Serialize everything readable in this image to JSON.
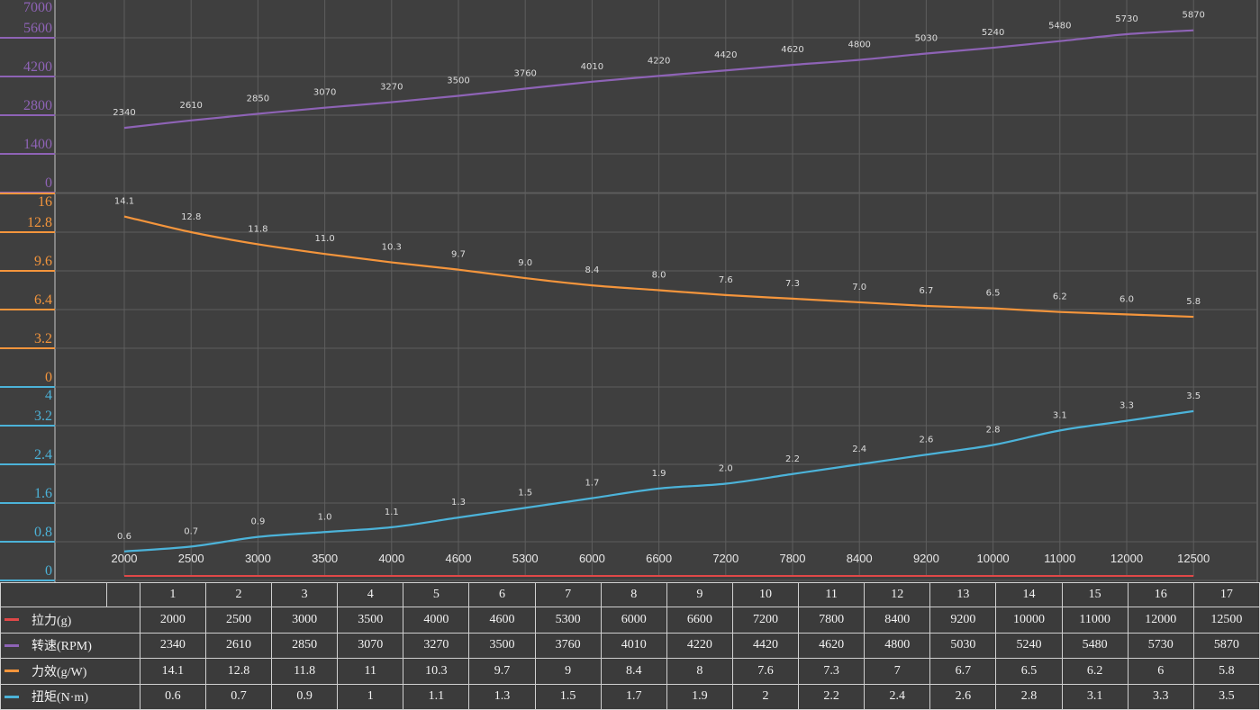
{
  "chart_data": {
    "type": "line",
    "categories": [
      "2000",
      "2500",
      "3000",
      "3500",
      "4000",
      "4600",
      "5300",
      "6000",
      "6600",
      "7200",
      "7800",
      "8400",
      "9200",
      "10000",
      "11000",
      "12000",
      "12500"
    ],
    "series": [
      {
        "name": "拉力(g)",
        "color": "#e04848",
        "values": [
          2000,
          2500,
          3000,
          3500,
          4000,
          4600,
          5300,
          6000,
          6600,
          7200,
          7800,
          8400,
          9200,
          10000,
          11000,
          12000,
          12500
        ]
      },
      {
        "name": "转速(RPM)",
        "color": "#8e63b6",
        "axis_ticks": [
          "0",
          "1400",
          "2800",
          "4200",
          "5600",
          "7000"
        ],
        "ylim": [
          0,
          7000
        ],
        "values": [
          2340,
          2610,
          2850,
          3070,
          3270,
          3500,
          3760,
          4010,
          4220,
          4420,
          4620,
          4800,
          5030,
          5240,
          5480,
          5730,
          5870
        ],
        "labels": [
          "2340",
          "2610",
          "2850",
          "3070",
          "3270",
          "3500",
          "3760",
          "4010",
          "4220",
          "4420",
          "4620",
          "4800",
          "5030",
          "5240",
          "5480",
          "5730",
          "5870"
        ]
      },
      {
        "name": "力效(g/W)",
        "color": "#f4953c",
        "axis_ticks": [
          "0",
          "3.2",
          "6.4",
          "9.6",
          "12.8",
          "16"
        ],
        "ylim": [
          0,
          16
        ],
        "values": [
          14.1,
          12.8,
          11.8,
          11.0,
          10.3,
          9.7,
          9.0,
          8.4,
          8.0,
          7.6,
          7.3,
          7.0,
          6.7,
          6.5,
          6.2,
          6.0,
          5.8
        ],
        "labels": [
          "14.1",
          "12.8",
          "11.8",
          "11.0",
          "10.3",
          "9.7",
          "9.0",
          "8.4",
          "8.0",
          "7.6",
          "7.3",
          "7.0",
          "6.7",
          "6.5",
          "6.2",
          "6.0",
          "5.8"
        ]
      },
      {
        "name": "扭矩(N·m)",
        "color": "#4cb3d9",
        "axis_ticks": [
          "0",
          "0.8",
          "1.6",
          "2.4",
          "3.2",
          "4"
        ],
        "ylim": [
          0,
          4
        ],
        "values": [
          0.6,
          0.7,
          0.9,
          1.0,
          1.1,
          1.3,
          1.5,
          1.7,
          1.9,
          2.0,
          2.2,
          2.4,
          2.6,
          2.8,
          3.1,
          3.3,
          3.5
        ],
        "labels": [
          "0.6",
          "0.7",
          "0.9",
          "1.0",
          "1.1",
          "1.3",
          "1.5",
          "1.7",
          "1.9",
          "2.0",
          "2.2",
          "2.4",
          "2.6",
          "2.8",
          "3.1",
          "3.3",
          "3.5"
        ]
      }
    ],
    "grid": true
  },
  "table": {
    "header": [
      "1",
      "2",
      "3",
      "4",
      "5",
      "6",
      "7",
      "8",
      "9",
      "10",
      "11",
      "12",
      "13",
      "14",
      "15",
      "16",
      "17"
    ],
    "rows": [
      {
        "label": "拉力(g)",
        "color": "#e04848",
        "cells": [
          "2000",
          "2500",
          "3000",
          "3500",
          "4000",
          "4600",
          "5300",
          "6000",
          "6600",
          "7200",
          "7800",
          "8400",
          "9200",
          "10000",
          "11000",
          "12000",
          "12500"
        ]
      },
      {
        "label": "转速(RPM)",
        "color": "#8e63b6",
        "cells": [
          "2340",
          "2610",
          "2850",
          "3070",
          "3270",
          "3500",
          "3760",
          "4010",
          "4220",
          "4420",
          "4620",
          "4800",
          "5030",
          "5240",
          "5480",
          "5730",
          "5870"
        ]
      },
      {
        "label": "力效(g/W)",
        "color": "#f4953c",
        "cells": [
          "14.1",
          "12.8",
          "11.8",
          "11",
          "10.3",
          "9.7",
          "9",
          "8.4",
          "8",
          "7.6",
          "7.3",
          "7",
          "6.7",
          "6.5",
          "6.2",
          "6",
          "5.8"
        ]
      },
      {
        "label": "扭矩(N·m)",
        "color": "#4cb3d9",
        "cells": [
          "0.6",
          "0.7",
          "0.9",
          "1",
          "1.1",
          "1.3",
          "1.5",
          "1.7",
          "1.9",
          "2",
          "2.2",
          "2.4",
          "2.6",
          "2.8",
          "3.1",
          "3.3",
          "3.5"
        ]
      }
    ]
  }
}
